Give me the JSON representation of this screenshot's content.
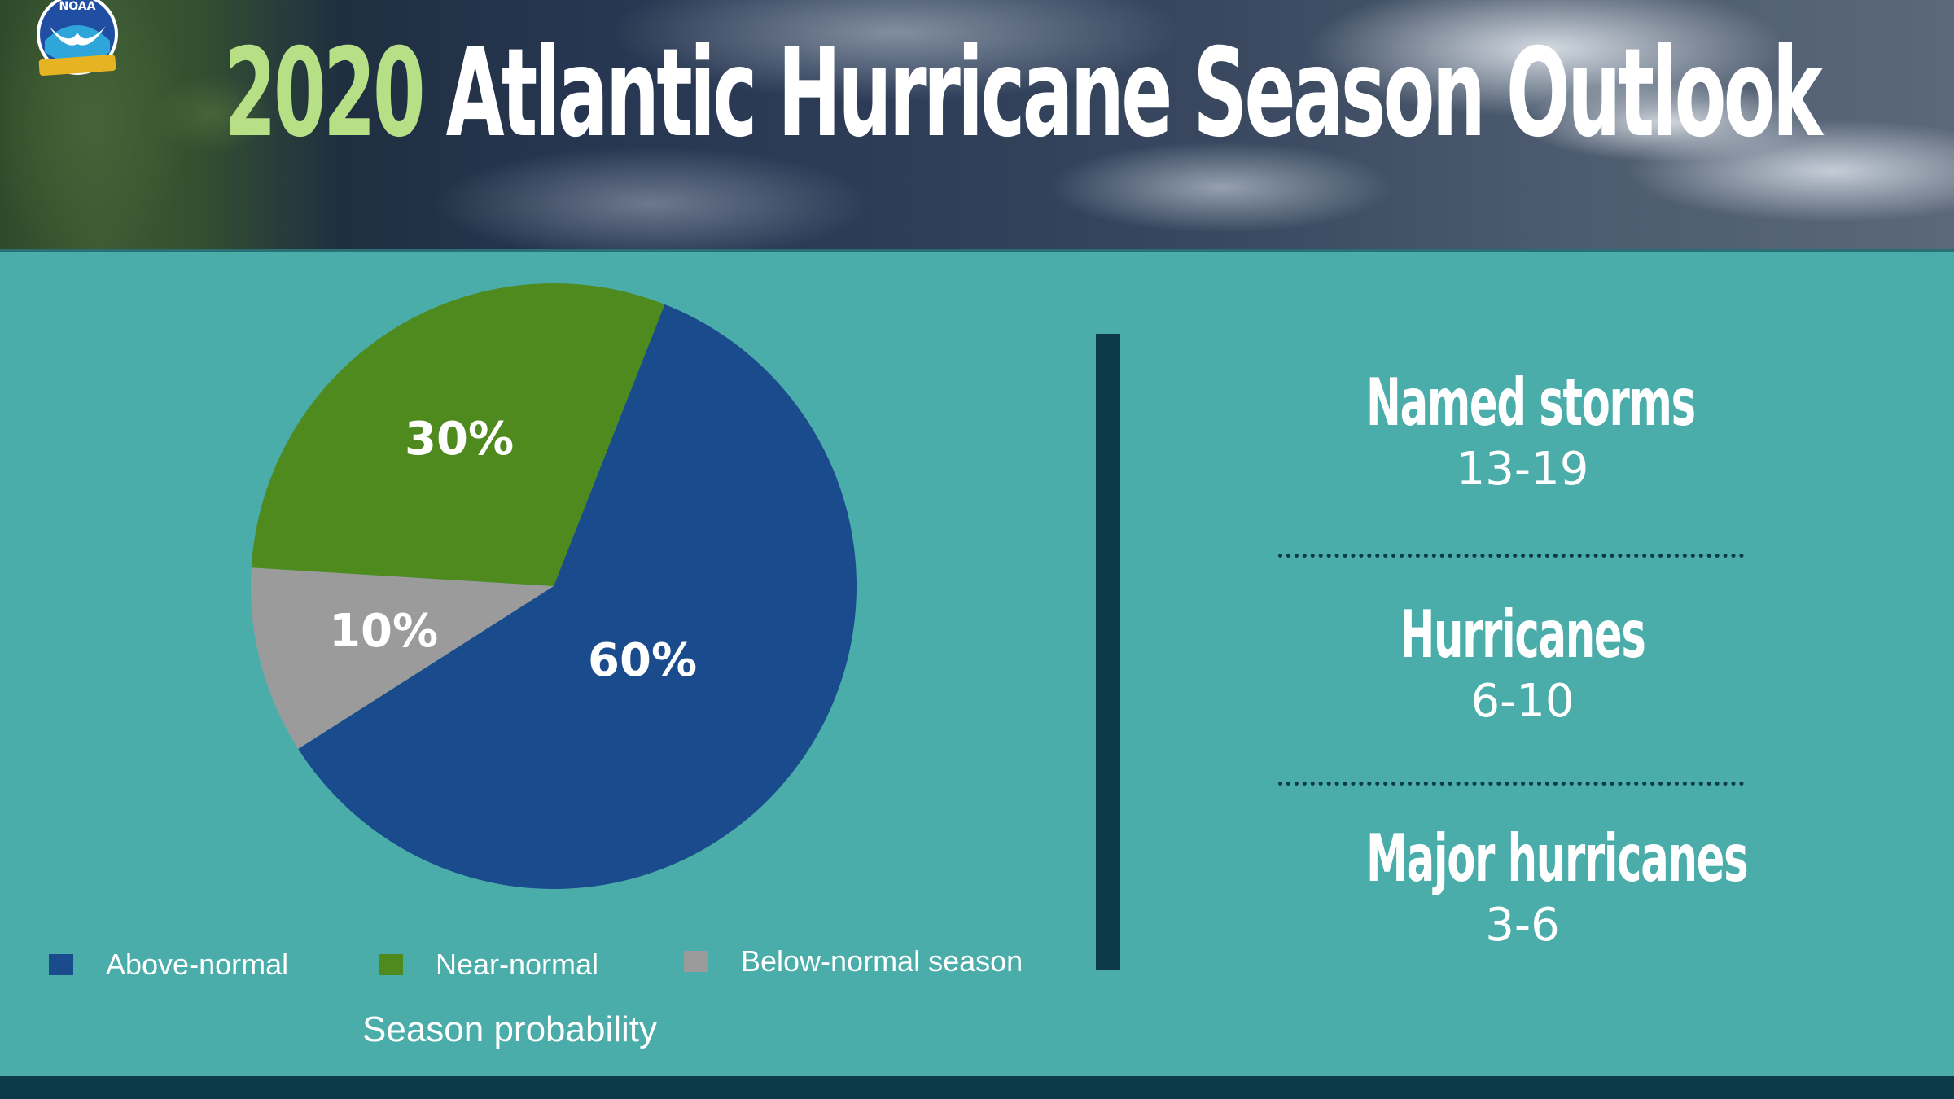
{
  "header": {
    "title_year": "2020",
    "title_rest": " Atlantic Hurricane Season Outlook",
    "logo_text": "NOAA"
  },
  "chart_data": {
    "type": "pie",
    "categories": [
      "Above-normal",
      "Near-normal",
      "Below-normal season"
    ],
    "values": [
      60,
      30,
      10
    ],
    "value_labels": [
      "60%",
      "30%",
      "10%"
    ],
    "colors": [
      "#1a4b8c",
      "#4e8a1e",
      "#9b9b9b"
    ],
    "xlabel": "Season probability",
    "legend_position": "bottom"
  },
  "stats": [
    {
      "label": "Named storms",
      "value": "13-19"
    },
    {
      "label": "Hurricanes",
      "value": "6-10"
    },
    {
      "label": "Major hurricanes",
      "value": "3-6"
    }
  ],
  "colors": {
    "background": "#4aadaa",
    "title_year": "#b6df86",
    "divider": "#0c3a48"
  }
}
